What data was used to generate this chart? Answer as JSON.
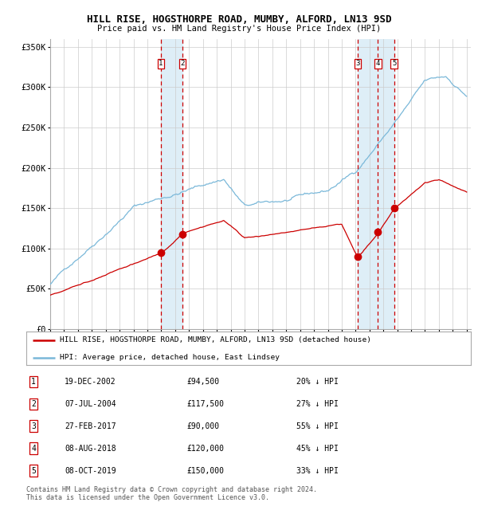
{
  "title": "HILL RISE, HOGSTHORPE ROAD, MUMBY, ALFORD, LN13 9SD",
  "subtitle": "Price paid vs. HM Land Registry's House Price Index (HPI)",
  "ylim": [
    0,
    360000
  ],
  "yticks": [
    0,
    50000,
    100000,
    150000,
    200000,
    250000,
    300000,
    350000
  ],
  "ytick_labels": [
    "£0",
    "£50K",
    "£100K",
    "£150K",
    "£200K",
    "£250K",
    "£300K",
    "£350K"
  ],
  "hpi_color": "#7ab8d9",
  "price_color": "#cc0000",
  "bg_color": "#ffffff",
  "grid_color": "#cccccc",
  "shade_color": "#deeef7",
  "sales": [
    {
      "label": "1",
      "date_num": 2002.97,
      "price": 94500
    },
    {
      "label": "2",
      "date_num": 2004.52,
      "price": 117500
    },
    {
      "label": "3",
      "date_num": 2017.16,
      "price": 90000
    },
    {
      "label": "4",
      "date_num": 2018.6,
      "price": 120000
    },
    {
      "label": "5",
      "date_num": 2019.77,
      "price": 150000
    }
  ],
  "legend_label_red": "HILL RISE, HOGSTHORPE ROAD, MUMBY, ALFORD, LN13 9SD (detached house)",
  "legend_label_blue": "HPI: Average price, detached house, East Lindsey",
  "footer": "Contains HM Land Registry data © Crown copyright and database right 2024.\nThis data is licensed under the Open Government Licence v3.0.",
  "table_rows": [
    [
      "1",
      "19-DEC-2002",
      "£94,500",
      "20% ↓ HPI"
    ],
    [
      "2",
      "07-JUL-2004",
      "£117,500",
      "27% ↓ HPI"
    ],
    [
      "3",
      "27-FEB-2017",
      "£90,000",
      "55% ↓ HPI"
    ],
    [
      "4",
      "08-AUG-2018",
      "£120,000",
      "45% ↓ HPI"
    ],
    [
      "5",
      "08-OCT-2019",
      "£150,000",
      "33% ↓ HPI"
    ]
  ]
}
